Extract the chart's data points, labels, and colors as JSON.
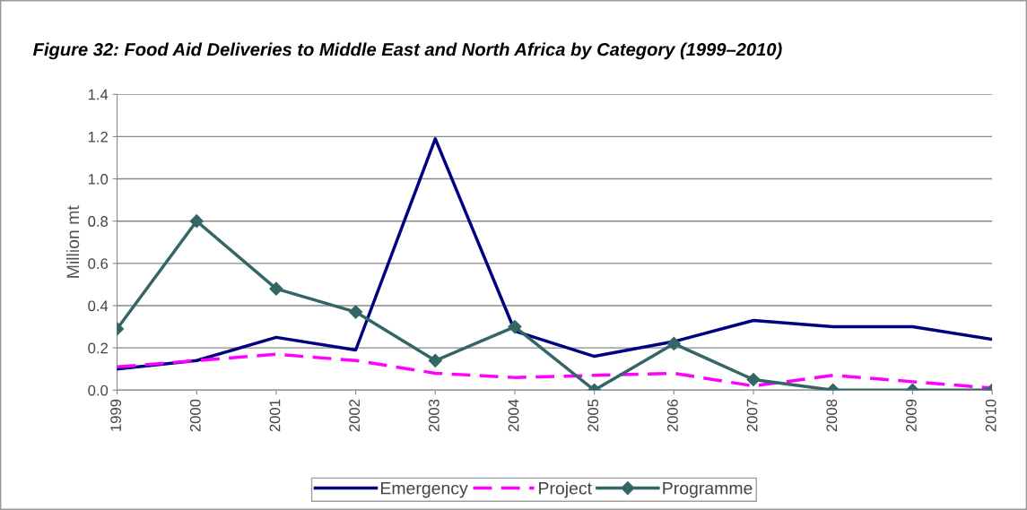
{
  "chart_data": {
    "type": "line",
    "title": "Figure 32: Food Aid Deliveries to Middle East and North Africa by Category (1999–2010)",
    "ylabel": "Million mt",
    "categories": [
      "1999",
      "2000",
      "2001",
      "2002",
      "2003",
      "2004",
      "2005",
      "2006",
      "2007",
      "2008",
      "2009",
      "2010"
    ],
    "series": [
      {
        "name": "Emergency",
        "color": "#000080",
        "line_style": "solid",
        "marker": "none",
        "values": [
          0.1,
          0.14,
          0.25,
          0.19,
          1.19,
          0.28,
          0.16,
          0.23,
          0.33,
          0.3,
          0.3,
          0.24
        ]
      },
      {
        "name": "Project",
        "color": "#ff00ff",
        "line_style": "dashed",
        "marker": "none",
        "values": [
          0.11,
          0.14,
          0.17,
          0.14,
          0.08,
          0.06,
          0.07,
          0.08,
          0.02,
          0.07,
          0.04,
          0.01
        ]
      },
      {
        "name": "Programme",
        "color": "#336666",
        "line_style": "solid",
        "marker": "diamond",
        "values": [
          0.29,
          0.8,
          0.48,
          0.37,
          0.14,
          0.3,
          0.0,
          0.22,
          0.05,
          0.0,
          0.0,
          0.0
        ]
      }
    ],
    "ylim": [
      0,
      1.4
    ],
    "yticks": [
      {
        "value": 0,
        "label": "0.0"
      },
      {
        "value": 0.2,
        "label": "0.2"
      },
      {
        "value": 0.4,
        "label": "0.4"
      },
      {
        "value": 0.6,
        "label": "0.6"
      },
      {
        "value": 0.8,
        "label": "0.8"
      },
      {
        "value": 1.0,
        "label": "1.0"
      },
      {
        "value": 1.2,
        "label": "1.2"
      },
      {
        "value": 1.4,
        "label": "1.4"
      }
    ],
    "grid": "y",
    "legend": "bottom"
  }
}
